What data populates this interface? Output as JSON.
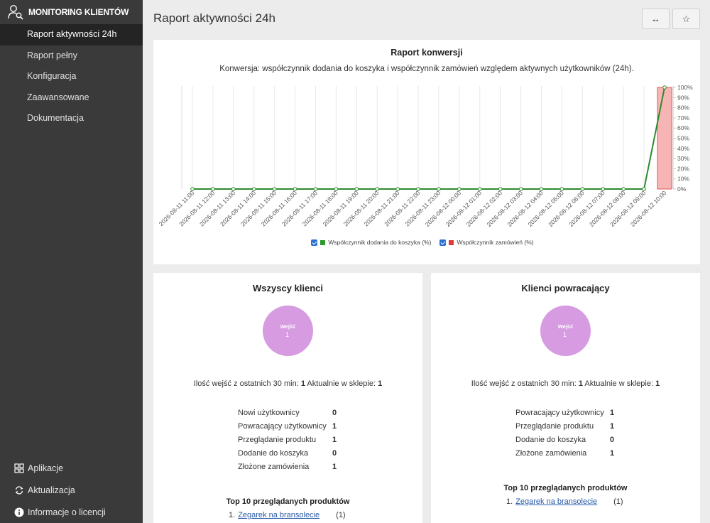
{
  "sidebar": {
    "brand": "MONITORING KLIENTÓW",
    "items": [
      {
        "label": "Raport aktywności 24h",
        "active": true
      },
      {
        "label": "Raport pełny"
      },
      {
        "label": "Konfiguracja"
      },
      {
        "label": "Zaawansowane"
      },
      {
        "label": "Dokumentacja"
      }
    ],
    "bottom": [
      {
        "label": "Aplikacje",
        "icon": "grid-icon"
      },
      {
        "label": "Aktualizacja",
        "icon": "refresh-icon"
      },
      {
        "label": "Informacje o licencji",
        "icon": "info-icon"
      }
    ]
  },
  "header": {
    "title": "Raport aktywności 24h",
    "expand_icon": "↔",
    "star_icon": "☆"
  },
  "conversion": {
    "title": "Raport konwersji",
    "subtitle": "Konwersja: współczynnik dodania do koszyka i współczynnik zamówień względem aktywnych użytkowników (24h)."
  },
  "chart_data": {
    "type": "line",
    "title": "Raport konwersji",
    "x": [
      "2026-08-11 11:00",
      "2026-08-11 12:00",
      "2026-08-11 13:00",
      "2026-08-11 14:00",
      "2026-08-11 15:00",
      "2026-08-11 16:00",
      "2026-08-11 17:00",
      "2026-08-11 18:00",
      "2026-08-11 19:00",
      "2026-08-11 20:00",
      "2026-08-11 21:00",
      "2026-08-11 22:00",
      "2026-08-11 23:00",
      "2026-08-12 00:00",
      "2026-08-12 01:00",
      "2026-08-12 02:00",
      "2026-08-12 03:00",
      "2026-08-12 04:00",
      "2026-08-12 05:00",
      "2026-08-12 06:00",
      "2026-08-12 07:00",
      "2026-08-12 08:00",
      "2026-08-12 09:00",
      "2026-08-12 10:00"
    ],
    "series": [
      {
        "name": "Współczynnik dodania do koszyka (%)",
        "kind": "line",
        "color": "#2e8b2e",
        "values": [
          0,
          0,
          0,
          0,
          0,
          0,
          0,
          0,
          0,
          0,
          0,
          0,
          0,
          0,
          0,
          0,
          0,
          0,
          0,
          0,
          0,
          0,
          0,
          100
        ]
      },
      {
        "name": "Współczynnik zamówień (%)",
        "kind": "bar",
        "color": "#e05a5a",
        "values": [
          0,
          0,
          0,
          0,
          0,
          0,
          0,
          0,
          0,
          0,
          0,
          0,
          0,
          0,
          0,
          0,
          0,
          0,
          0,
          0,
          0,
          0,
          0,
          100
        ]
      }
    ],
    "y_ticks": [
      "0%",
      "10%",
      "20%",
      "30%",
      "40%",
      "50%",
      "60%",
      "70%",
      "80%",
      "90%",
      "100%"
    ],
    "ylim": [
      0,
      100
    ],
    "legend": "bottom"
  },
  "all_clients": {
    "title": "Wszyscy klienci",
    "bubble_label": "Wejść",
    "bubble_value": "1",
    "summary_prefix": "Ilość wejść z ostatnich 30 min:",
    "summary_entries": "1",
    "summary_mid": "Aktualnie w sklepie:",
    "summary_now": "1",
    "stats": [
      {
        "label": "Nowi użytkownicy",
        "value": "0"
      },
      {
        "label": "Powracający użytkownicy",
        "value": "1"
      },
      {
        "label": "Przeglądanie produktu",
        "value": "1"
      },
      {
        "label": "Dodanie do koszyka",
        "value": "0"
      },
      {
        "label": "Złożone zamówienia",
        "value": "1"
      }
    ],
    "top_title": "Top 10 przeglądanych produktów",
    "top": [
      {
        "rank": "1.",
        "name": "Zegarek na bransolecie",
        "count": "(1)"
      }
    ]
  },
  "returning_clients": {
    "title": "Klienci powracający",
    "bubble_label": "Wejść",
    "bubble_value": "1",
    "summary_prefix": "Ilość wejść z ostatnich 30 min:",
    "summary_entries": "1",
    "summary_mid": "Aktualnie w sklepie:",
    "summary_now": "1",
    "stats": [
      {
        "label": "Powracający użytkownicy",
        "value": "1"
      },
      {
        "label": "Przeglądanie produktu",
        "value": "1"
      },
      {
        "label": "Dodanie do koszyka",
        "value": "0"
      },
      {
        "label": "Złożone zamówienia",
        "value": "1"
      }
    ],
    "top_title": "Top 10 przeglądanych produktów",
    "top": [
      {
        "rank": "1.",
        "name": "Zegarek na bransolecie",
        "count": "(1)"
      }
    ]
  }
}
